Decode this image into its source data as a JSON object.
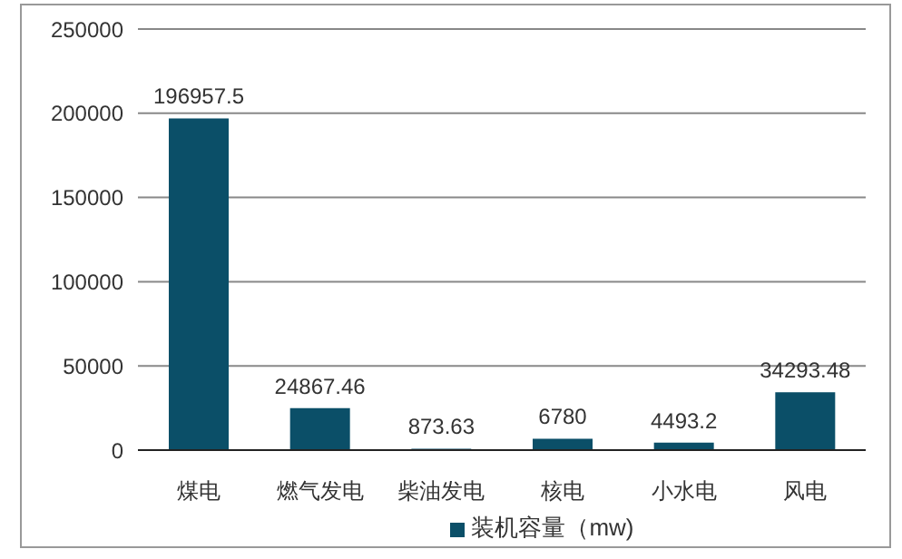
{
  "chart_data": {
    "type": "bar",
    "categories": [
      "煤电",
      "燃气发电",
      "柴油发电",
      "核电",
      "小水电",
      "风电"
    ],
    "series": [
      {
        "name": "装机容量（mw)",
        "color": "#0b4f68",
        "values": [
          196957.5,
          24867.46,
          873.63,
          6780,
          4493.2,
          34293.48
        ]
      }
    ],
    "ylim": [
      0,
      250000
    ],
    "yticks": [
      0,
      50000,
      100000,
      150000,
      200000,
      250000
    ],
    "grid": "y",
    "legend": "bottom",
    "data_labels": true
  }
}
